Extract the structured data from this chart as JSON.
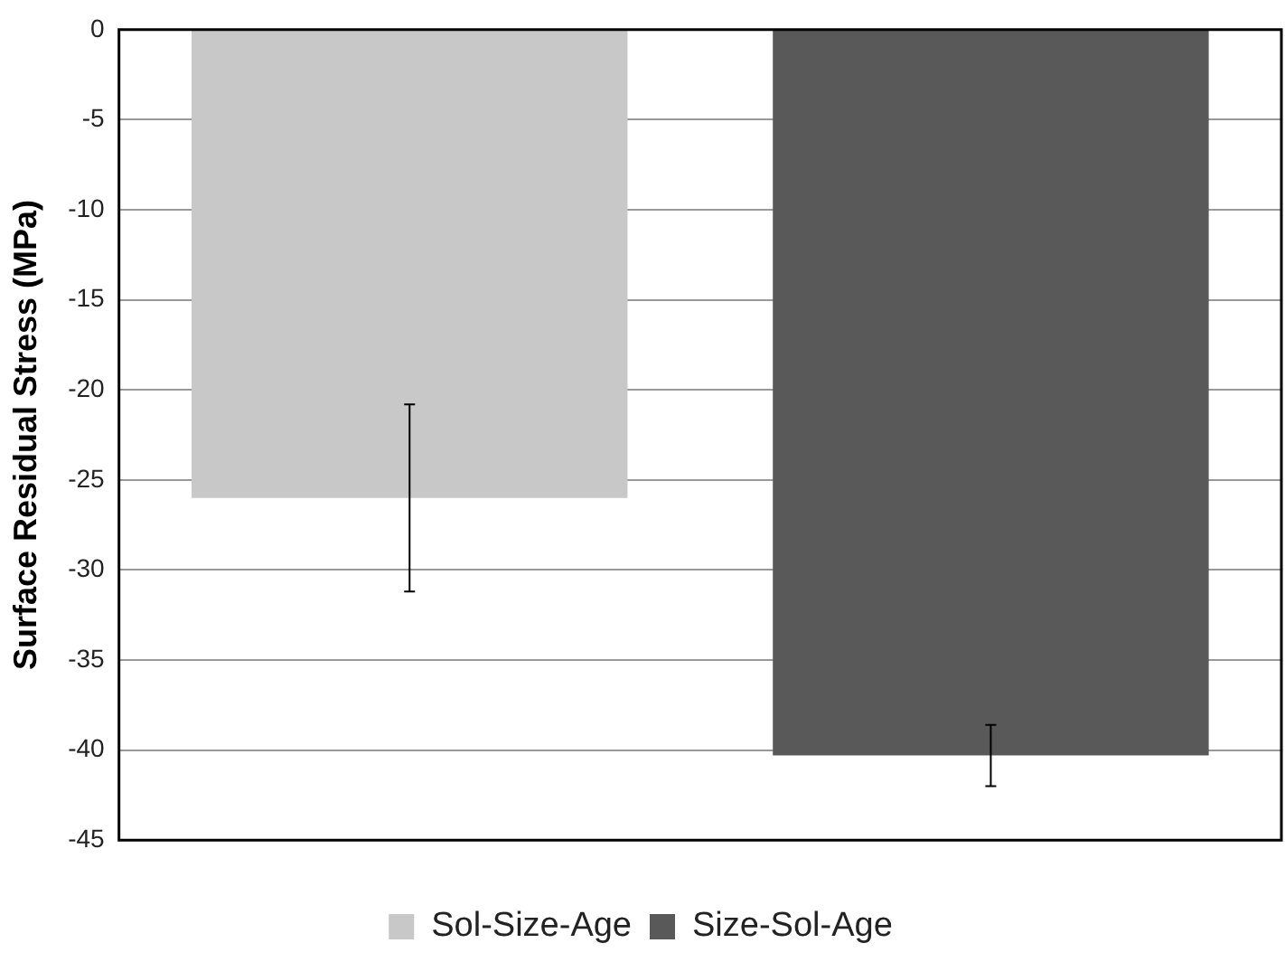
{
  "chart_data": {
    "type": "bar",
    "ylabel": "Surface Residual Stress (MPa)",
    "categories": [
      null
    ],
    "series": [
      {
        "name": "Sol-Size-Age",
        "color": "#c8c8c8",
        "values": [
          -26
        ],
        "errors": [
          5.2
        ]
      },
      {
        "name": "Size-Sol-Age",
        "color": "#595959",
        "values": [
          -40.3
        ],
        "errors": [
          1.7
        ]
      }
    ],
    "ylim": [
      -45,
      0
    ],
    "yticks": [
      0,
      -5,
      -10,
      -15,
      -20,
      -25,
      -30,
      -35,
      -40,
      -45
    ],
    "grid": "y",
    "legend": "bottom"
  }
}
